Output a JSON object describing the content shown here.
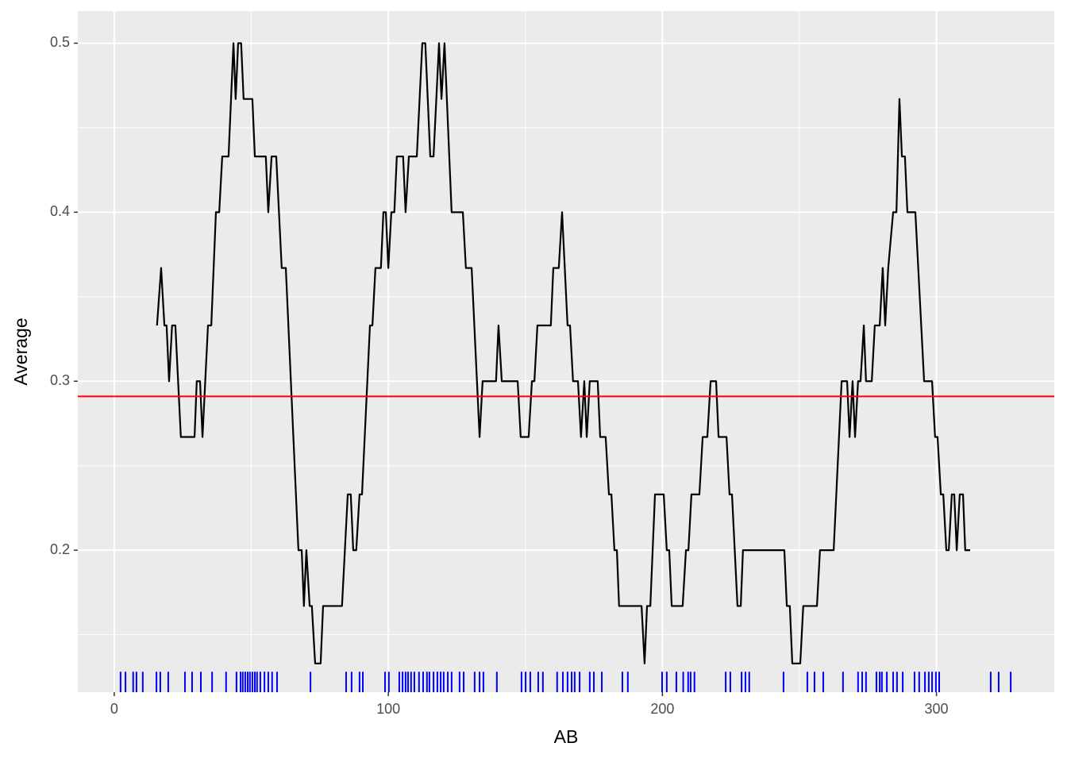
{
  "chart_data": {
    "type": "line",
    "x_label": "AB",
    "y_label": "Average",
    "xlim": [
      -13.3,
      343
    ],
    "ylim": [
      0.116,
      0.519
    ],
    "xticks": [
      0,
      100,
      200,
      300
    ],
    "yticks": [
      0.2,
      0.3,
      0.4,
      0.5
    ],
    "x_minor_grid": [
      50,
      150,
      250
    ],
    "y_minor_grid": [
      0.15,
      0.25,
      0.35,
      0.45
    ],
    "grid": true,
    "color": "#000000",
    "x": [
      15.6,
      17.1,
      18.3,
      19.1,
      20,
      21.1,
      22.3,
      24.3,
      29.3,
      30.1,
      31.3,
      32.2,
      34.2,
      35.4,
      37.1,
      38.3,
      39.4,
      41.7,
      43.5,
      44.3,
      45.2,
      46.3,
      47.2,
      50.4,
      51.3,
      55.3,
      56.2,
      57.4,
      59.1,
      61.1,
      62.6,
      67.2,
      68.4,
      69.2,
      70.1,
      71.3,
      72.1,
      73.3,
      75.3,
      76.2,
      83.1,
      85.2,
      86.3,
      87.2,
      88.3,
      89.5,
      90.4,
      93.3,
      94.2,
      95.3,
      97.3,
      98.2,
      99.1,
      100,
      101.1,
      102.2,
      103.1,
      105.4,
      106.3,
      107.5,
      110.4,
      112.4,
      113.5,
      115.3,
      116.5,
      118.5,
      119.4,
      120.5,
      123.1,
      127.2,
      128.3,
      130.4,
      133.3,
      134.4,
      139.3,
      140.2,
      141.4,
      147.2,
      148.3,
      151.2,
      152.4,
      153.3,
      154.4,
      159.3,
      160.2,
      162.2,
      163.4,
      165.4,
      166.3,
      167.4,
      169.2,
      170.3,
      171.5,
      172.4,
      173.5,
      176.4,
      177.3,
      179.3,
      180.5,
      181.4,
      182.5,
      183.4,
      184.2,
      192.4,
      193.5,
      194.4,
      195.6,
      197.3,
      200.5,
      201.6,
      202.5,
      203.4,
      207.4,
      208.6,
      209.5,
      210.6,
      213.5,
      214.7,
      216.4,
      217.6,
      219.6,
      220.5,
      223.4,
      224.5,
      225.4,
      227.4,
      228.6,
      229.4,
      244.5,
      245.4,
      246.5,
      247.4,
      250.3,
      251.4,
      256.4,
      257.5,
      262.5,
      265.4,
      267.4,
      268.3,
      269.4,
      270.3,
      271.4,
      272.3,
      273.5,
      274.3,
      276.4,
      277.5,
      279.3,
      280.4,
      281.3,
      282.4,
      284.2,
      285.4,
      286.5,
      287.4,
      288.5,
      289.4,
      292.3,
      295.5,
      298.4,
      299.5,
      300.4,
      301.6,
      302.5,
      303.6,
      304.5,
      305.6,
      306.5,
      307.4,
      308.5,
      309.7,
      310.5,
      312.3
    ],
    "values": [
      0.333,
      0.367,
      0.333,
      0.333,
      0.3,
      0.333,
      0.333,
      0.267,
      0.267,
      0.3,
      0.3,
      0.267,
      0.333,
      0.333,
      0.4,
      0.4,
      0.433,
      0.433,
      0.5,
      0.467,
      0.5,
      0.5,
      0.467,
      0.467,
      0.433,
      0.433,
      0.4,
      0.433,
      0.433,
      0.367,
      0.367,
      0.2,
      0.2,
      0.167,
      0.2,
      0.167,
      0.167,
      0.133,
      0.133,
      0.167,
      0.167,
      0.233,
      0.233,
      0.2,
      0.2,
      0.233,
      0.233,
      0.333,
      0.333,
      0.367,
      0.367,
      0.4,
      0.4,
      0.367,
      0.4,
      0.4,
      0.433,
      0.433,
      0.4,
      0.433,
      0.433,
      0.5,
      0.5,
      0.433,
      0.433,
      0.5,
      0.467,
      0.5,
      0.4,
      0.4,
      0.367,
      0.367,
      0.267,
      0.3,
      0.3,
      0.333,
      0.3,
      0.3,
      0.267,
      0.267,
      0.3,
      0.3,
      0.333,
      0.333,
      0.367,
      0.367,
      0.4,
      0.333,
      0.333,
      0.3,
      0.3,
      0.267,
      0.3,
      0.267,
      0.3,
      0.3,
      0.267,
      0.267,
      0.233,
      0.233,
      0.2,
      0.2,
      0.167,
      0.167,
      0.133,
      0.167,
      0.167,
      0.233,
      0.233,
      0.2,
      0.2,
      0.167,
      0.167,
      0.2,
      0.2,
      0.233,
      0.233,
      0.267,
      0.267,
      0.3,
      0.3,
      0.267,
      0.267,
      0.233,
      0.233,
      0.167,
      0.167,
      0.2,
      0.2,
      0.167,
      0.167,
      0.133,
      0.133,
      0.167,
      0.167,
      0.2,
      0.2,
      0.3,
      0.3,
      0.267,
      0.3,
      0.267,
      0.3,
      0.3,
      0.333,
      0.3,
      0.3,
      0.333,
      0.333,
      0.367,
      0.333,
      0.367,
      0.4,
      0.4,
      0.467,
      0.433,
      0.433,
      0.4,
      0.4,
      0.3,
      0.3,
      0.267,
      0.267,
      0.233,
      0.233,
      0.2,
      0.2,
      0.233,
      0.233,
      0.2,
      0.233,
      0.233,
      0.2,
      0.2
    ],
    "hline": {
      "value": 0.291,
      "color": "#ff0000"
    },
    "rug": {
      "color": "#0000ff",
      "x": [
        2.3,
        4.1,
        6.9,
        8.1,
        10.4,
        15.4,
        16.8,
        19.7,
        25.8,
        28.4,
        31.6,
        35.7,
        40.8,
        44.6,
        46.1,
        46.9,
        47.8,
        48.7,
        49.5,
        50.4,
        51.3,
        52.1,
        53.3,
        54.8,
        56.2,
        57.6,
        59.4,
        71.6,
        84.6,
        86.6,
        89.5,
        90.7,
        98.8,
        100.2,
        104.0,
        105.2,
        106.3,
        107.2,
        108.3,
        109.5,
        111.2,
        112.7,
        114.1,
        115.0,
        116.5,
        117.9,
        119.1,
        120.2,
        121.7,
        123.1,
        126.0,
        127.5,
        131.5,
        133.3,
        134.7,
        139.6,
        148.6,
        150.1,
        151.8,
        154.7,
        156.4,
        161.6,
        163.7,
        165.4,
        166.9,
        168.0,
        169.8,
        173.5,
        175.0,
        177.9,
        185.4,
        187.4,
        199.9,
        201.6,
        205.1,
        207.6,
        209.4,
        210.3,
        211.7,
        223.1,
        224.8,
        228.9,
        230.3,
        231.7,
        244.2,
        252.9,
        255.5,
        258.7,
        265.9,
        271.4,
        272.9,
        274.3,
        278.1,
        279.3,
        280.1,
        281.9,
        284.2,
        285.6,
        287.7,
        292.0,
        293.7,
        295.8,
        297.2,
        298.4,
        299.8,
        301.0,
        319.8,
        322.7,
        327.1
      ]
    }
  }
}
